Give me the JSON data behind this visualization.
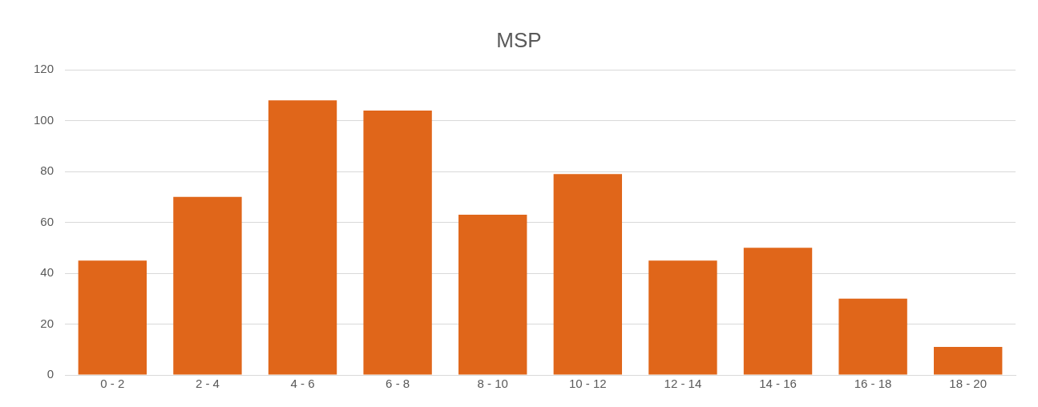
{
  "chart_data": {
    "type": "bar",
    "title": "MSP",
    "categories": [
      "0 - 2",
      "2 - 4",
      "4 - 6",
      "6 - 8",
      "8 - 10",
      "10 - 12",
      "12 - 14",
      "14 - 16",
      "16 - 18",
      "18 - 20"
    ],
    "values": [
      45,
      70,
      108,
      104,
      63,
      79,
      45,
      50,
      30,
      11
    ],
    "color": "#e0661a",
    "ylim": [
      0,
      120
    ],
    "yticks": [
      0,
      20,
      40,
      60,
      80,
      100,
      120
    ],
    "grid": "y",
    "legend": false
  }
}
